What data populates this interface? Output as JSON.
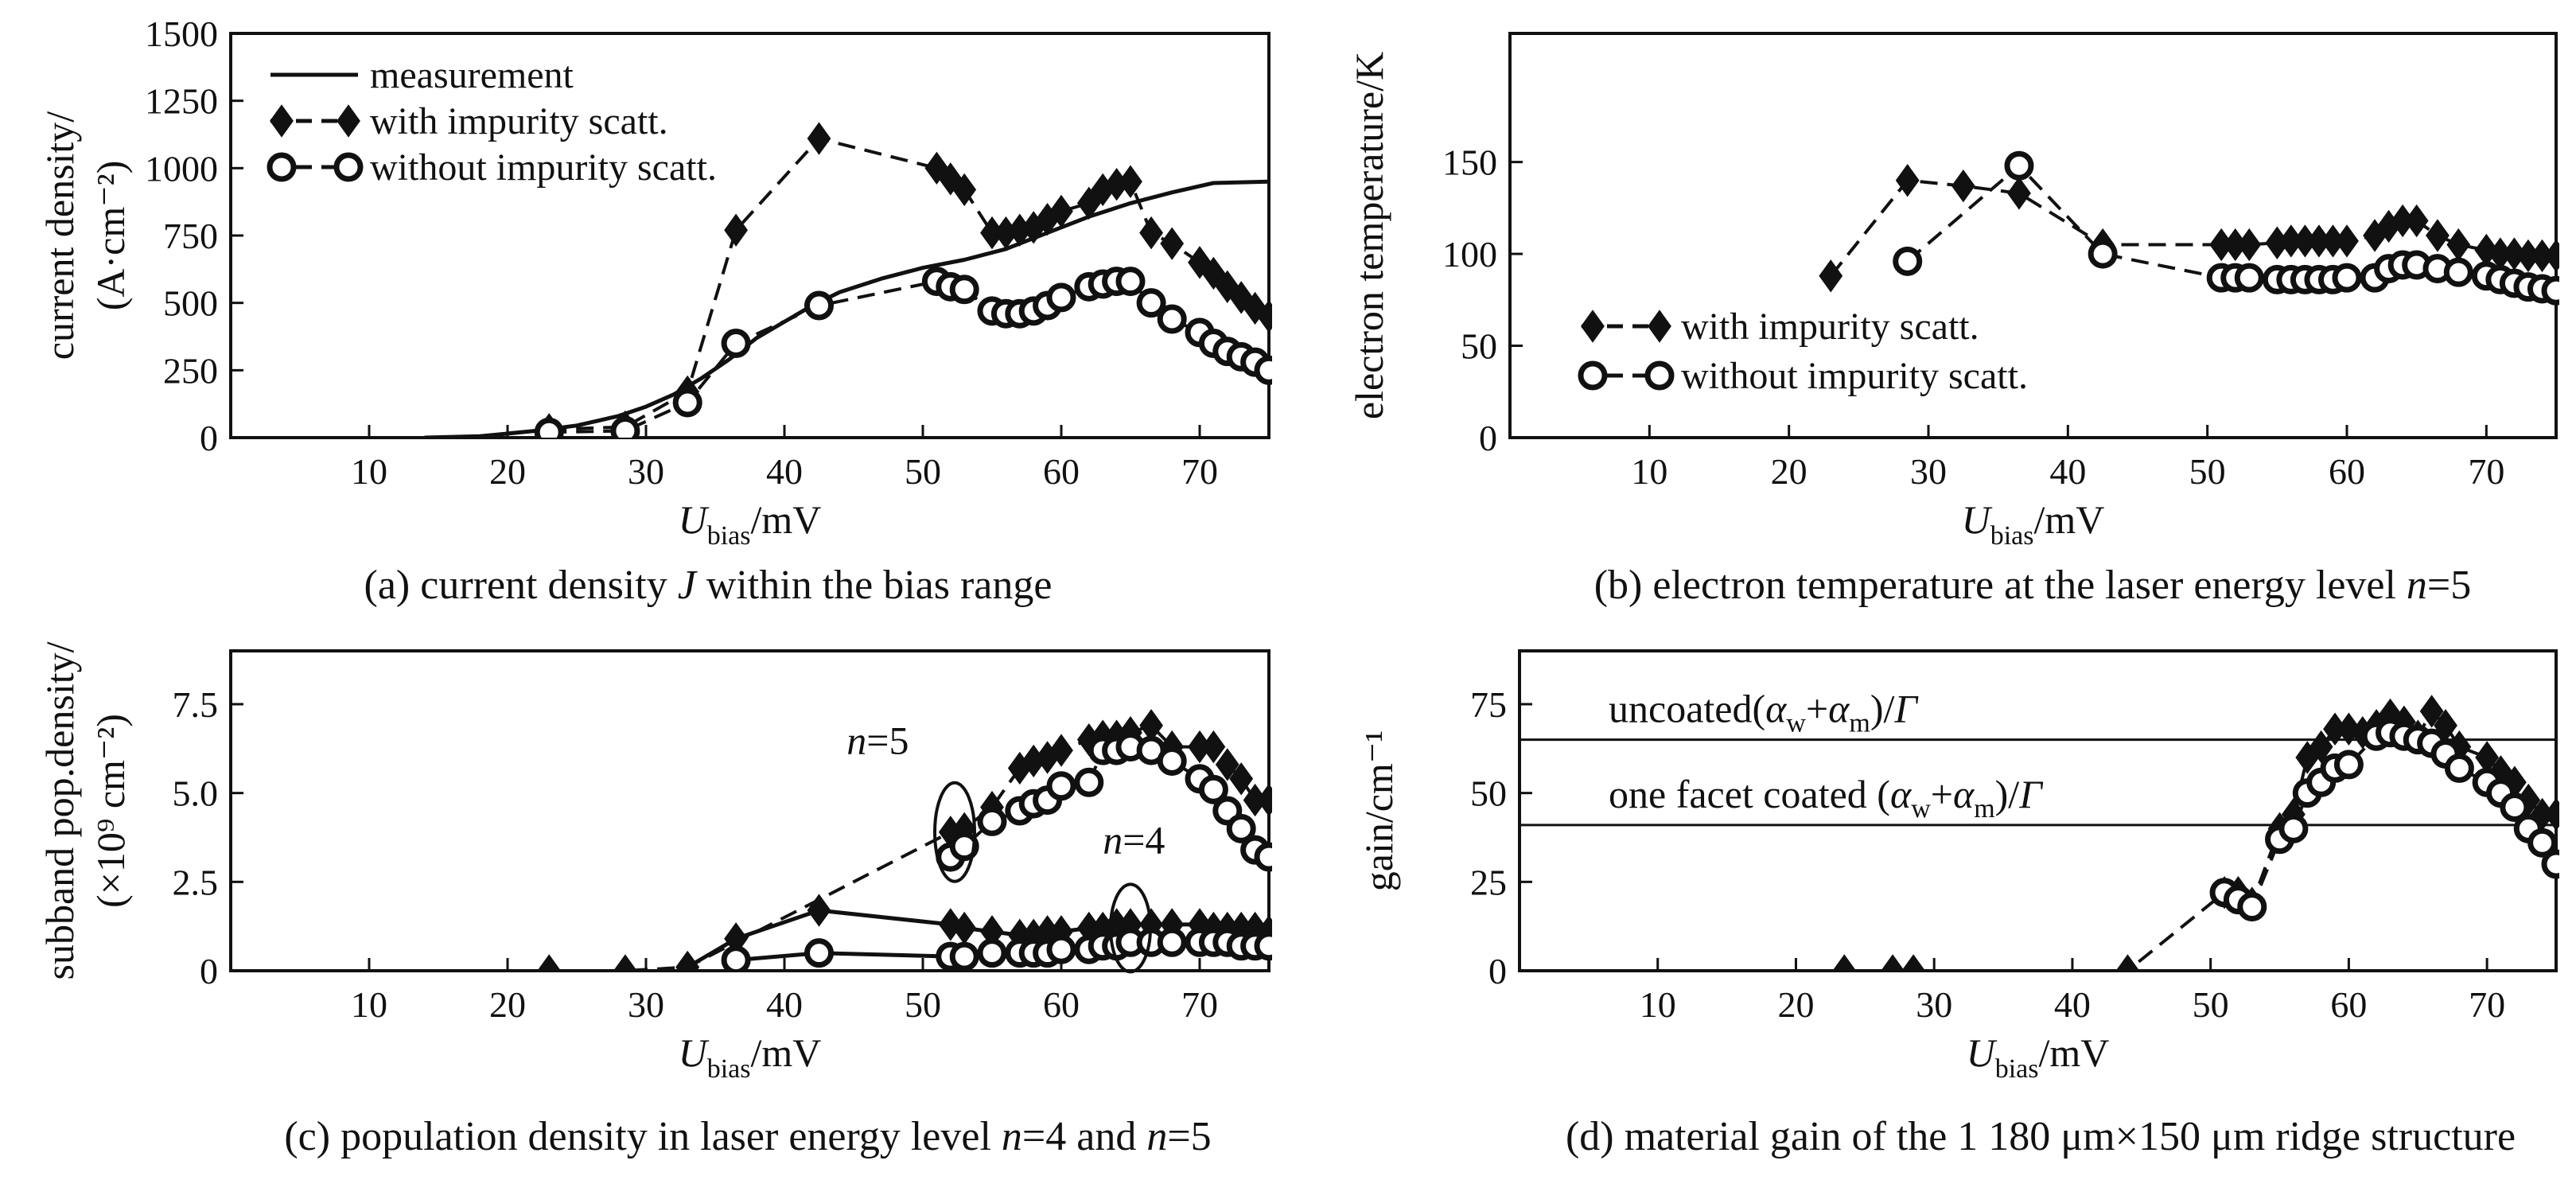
{
  "chart_data": [
    {
      "id": "a",
      "type": "line",
      "caption_prefix": "(a) current density ",
      "caption_var": "J",
      "caption_suffix": " within the bias range",
      "ylabel_line1": "current density/",
      "ylabel_line2": "(A·cm⁻²)",
      "xlabel_var": "U",
      "xlabel_sub": "bias",
      "xlabel_unit": "/mV",
      "xlim": [
        0,
        75
      ],
      "ylim": [
        0,
        1500
      ],
      "xticks": [
        10,
        20,
        30,
        40,
        50,
        60,
        70
      ],
      "yticks": [
        0,
        250,
        500,
        750,
        1000,
        1250,
        1500
      ],
      "legend": [
        "measurement",
        "with impurity scatt.",
        "without impurity scatt."
      ],
      "series": [
        {
          "name": "measurement",
          "style": "solid",
          "marker": "none",
          "x": [
            14,
            18,
            22,
            25,
            28,
            30,
            32,
            34,
            36,
            38,
            40,
            42,
            44,
            47,
            50,
            53,
            56,
            59,
            62,
            65,
            68,
            71,
            75
          ],
          "y": [
            0,
            5,
            25,
            45,
            80,
            115,
            160,
            220,
            290,
            370,
            430,
            490,
            540,
            590,
            630,
            660,
            700,
            760,
            820,
            870,
            910,
            945,
            950
          ]
        },
        {
          "name": "with impurity scatt.",
          "style": "dashed",
          "marker": "diamond",
          "x": [
            23,
            28.5,
            33,
            36.5,
            42.5,
            51,
            52,
            53,
            55,
            56,
            57,
            58,
            59,
            60,
            62,
            63,
            64,
            65,
            66.5,
            68,
            70,
            71,
            72,
            73,
            74,
            75
          ],
          "y": [
            30,
            40,
            170,
            770,
            1110,
            1000,
            960,
            920,
            760,
            760,
            770,
            780,
            810,
            840,
            870,
            920,
            940,
            950,
            760,
            720,
            650,
            610,
            560,
            520,
            480,
            450
          ]
        },
        {
          "name": "without impurity scatt.",
          "style": "dashed",
          "marker": "circle",
          "x": [
            23,
            28.5,
            33,
            36.5,
            42.5,
            51,
            52,
            53,
            55,
            56,
            57,
            58,
            59,
            60,
            62,
            63,
            64,
            65,
            66.5,
            68,
            70,
            71,
            72,
            73,
            74,
            75
          ],
          "y": [
            20,
            25,
            130,
            350,
            490,
            580,
            560,
            550,
            470,
            460,
            460,
            470,
            490,
            520,
            560,
            570,
            580,
            580,
            500,
            440,
            390,
            350,
            320,
            300,
            280,
            250
          ]
        }
      ]
    },
    {
      "id": "b",
      "type": "line",
      "caption_prefix": "(b) electron temperature at the laser energy level ",
      "caption_var": "n",
      "caption_suffix": "=5",
      "ylabel_line1": "electron temperature/K",
      "ylabel_line2": "",
      "xlabel_var": "U",
      "xlabel_sub": "bias",
      "xlabel_unit": "/mV",
      "xlim": [
        0,
        75
      ],
      "ylim": [
        0,
        220
      ],
      "xticks": [
        10,
        20,
        30,
        40,
        50,
        60,
        70
      ],
      "yticks": [
        0,
        50,
        100,
        150
      ],
      "legend": [
        "with impurity scatt.",
        "without impurity scatt."
      ],
      "series": [
        {
          "name": "with impurity scatt.",
          "style": "dashed",
          "marker": "diamond",
          "x": [
            23,
            28.5,
            32.5,
            36.5,
            42.5,
            51,
            52,
            53,
            55,
            56,
            57,
            58,
            59,
            60,
            62,
            63,
            64,
            65,
            66.5,
            68,
            70,
            71,
            72,
            73,
            74,
            75
          ],
          "y": [
            88,
            140,
            137,
            133,
            105,
            105,
            105,
            105,
            106,
            107,
            107,
            107,
            107,
            107,
            110,
            115,
            118,
            118,
            110,
            105,
            102,
            100,
            100,
            99,
            99,
            99
          ]
        },
        {
          "name": "without impurity scatt.",
          "style": "dashed",
          "marker": "circle",
          "x": [
            28.5,
            36.5,
            42.5,
            51,
            52,
            53,
            55,
            56,
            57,
            58,
            59,
            60,
            62,
            63,
            64,
            65,
            66.5,
            68,
            70,
            71,
            72,
            73,
            74,
            75
          ],
          "y": [
            96,
            148,
            100,
            87,
            87,
            87,
            86,
            86,
            86,
            86,
            86,
            87,
            87,
            92,
            94,
            94,
            92,
            90,
            88,
            86,
            84,
            82,
            81,
            80
          ]
        }
      ]
    },
    {
      "id": "c",
      "type": "line",
      "caption_prefix": "(c) population density in laser energy level ",
      "caption_var": "n",
      "caption_mid": "=4 and ",
      "caption_var2": "n",
      "caption_suffix": "=5",
      "ylabel_line1": "subband pop.density/",
      "ylabel_line2": "(×10⁹ cm⁻²)",
      "xlabel_var": "U",
      "xlabel_sub": "bias",
      "xlabel_unit": "/mV",
      "xlim": [
        0,
        75
      ],
      "ylim": [
        0,
        9
      ],
      "xticks": [
        10,
        20,
        30,
        40,
        50,
        60,
        70
      ],
      "yticks": [
        0,
        2.5,
        5.0,
        7.5
      ],
      "ytick_labels": [
        "0",
        "2.5",
        "5.0",
        "7.5"
      ],
      "annotations": [
        {
          "var": "n",
          "text": "=5"
        },
        {
          "var": "n",
          "text": "=4"
        }
      ],
      "series": [
        {
          "name": "n=5 with impurity scatt.",
          "style": "dashed",
          "marker": "diamond",
          "x": [
            23,
            28.5,
            33,
            52,
            53,
            55,
            57,
            58,
            59,
            60,
            62,
            63,
            64,
            65,
            66.5,
            68,
            70,
            71,
            72,
            73,
            74,
            75
          ],
          "y": [
            0,
            0,
            0.1,
            3.9,
            4.0,
            4.6,
            5.7,
            5.9,
            6.0,
            6.2,
            6.5,
            6.6,
            6.6,
            6.7,
            6.9,
            6.3,
            6.3,
            6.3,
            5.8,
            5.4,
            4.8,
            4.8
          ]
        },
        {
          "name": "n=5 without impurity scatt.",
          "style": "dashed",
          "marker": "circle",
          "x": [
            52,
            53,
            55,
            57,
            58,
            59,
            60,
            62,
            63,
            64,
            65,
            66.5,
            68,
            70,
            71,
            72,
            73,
            74,
            75
          ],
          "y": [
            3.2,
            3.5,
            4.2,
            4.5,
            4.7,
            4.8,
            5.2,
            5.3,
            6.2,
            6.2,
            6.3,
            6.2,
            5.9,
            5.4,
            5.1,
            4.5,
            4.0,
            3.4,
            3.2
          ]
        },
        {
          "name": "n=4 with impurity scatt.",
          "style": "solid",
          "marker": "diamond",
          "x": [
            33,
            36.5,
            42.5,
            52,
            53,
            55,
            57,
            58,
            59,
            60,
            62,
            63,
            64,
            65,
            66.5,
            68,
            70,
            71,
            72,
            73,
            74,
            75
          ],
          "y": [
            0.1,
            0.9,
            1.7,
            1.3,
            1.2,
            1.1,
            1.0,
            1.0,
            1.1,
            1.1,
            1.2,
            1.2,
            1.3,
            1.3,
            1.3,
            1.3,
            1.3,
            1.2,
            1.2,
            1.2,
            1.2,
            1.1
          ]
        },
        {
          "name": "n=4 without impurity scatt.",
          "style": "solid",
          "marker": "circle",
          "x": [
            36.5,
            42.5,
            52,
            53,
            55,
            57,
            58,
            59,
            60,
            62,
            63,
            64,
            65,
            66.5,
            68,
            70,
            71,
            72,
            73,
            74,
            75
          ],
          "y": [
            0.3,
            0.5,
            0.4,
            0.4,
            0.5,
            0.5,
            0.5,
            0.5,
            0.6,
            0.6,
            0.7,
            0.7,
            0.8,
            0.8,
            0.8,
            0.8,
            0.8,
            0.8,
            0.7,
            0.7,
            0.7
          ]
        }
      ]
    },
    {
      "id": "d",
      "type": "line",
      "caption_text": "(d) material gain of the 1 180 μm×150 μm ridge structure",
      "ylabel_line1": "gain/cm⁻¹",
      "ylabel_line2": "",
      "xlabel_var": "U",
      "xlabel_sub": "bias",
      "xlabel_unit": "/mV",
      "xlim": [
        0,
        75
      ],
      "ylim": [
        0,
        90
      ],
      "xticks": [
        10,
        20,
        30,
        40,
        50,
        60,
        70
      ],
      "yticks": [
        0,
        25,
        50,
        75
      ],
      "hlines": [
        {
          "y": 65,
          "label_prefix": "uncoated(",
          "label_expr": "α_w+α_m",
          "label_suffix": ")/Γ"
        },
        {
          "y": 41,
          "label_prefix": "one facet coated (",
          "label_expr": "α_w+α_m",
          "label_suffix": ")/Γ"
        }
      ],
      "series": [
        {
          "name": "with impurity scatt.",
          "style": "dashed",
          "marker": "diamond",
          "x": [
            23.5,
            27,
            28.5,
            44,
            51,
            52,
            53,
            55,
            56,
            57,
            58,
            59,
            60,
            61,
            62,
            63,
            64,
            65,
            66,
            67,
            68,
            70,
            71,
            72,
            73,
            74,
            75
          ],
          "y": [
            0,
            0,
            0,
            0,
            22,
            22,
            19,
            40,
            44,
            60,
            63,
            68,
            68,
            67,
            69,
            72,
            70,
            66,
            73,
            69,
            63,
            60,
            56,
            53,
            48,
            44,
            44
          ]
        },
        {
          "name": "without impurity scatt.",
          "style": "dashed",
          "marker": "circle",
          "x": [
            51,
            52,
            53,
            55,
            56,
            57,
            58,
            59,
            60,
            62,
            63,
            64,
            65,
            66,
            67,
            68,
            70,
            71,
            72,
            73,
            74,
            75
          ],
          "y": [
            22,
            20,
            18,
            37,
            40,
            50,
            53,
            57,
            58,
            66,
            67,
            66,
            65,
            64,
            61,
            57,
            53,
            50,
            46,
            40,
            36,
            30
          ]
        }
      ]
    }
  ]
}
